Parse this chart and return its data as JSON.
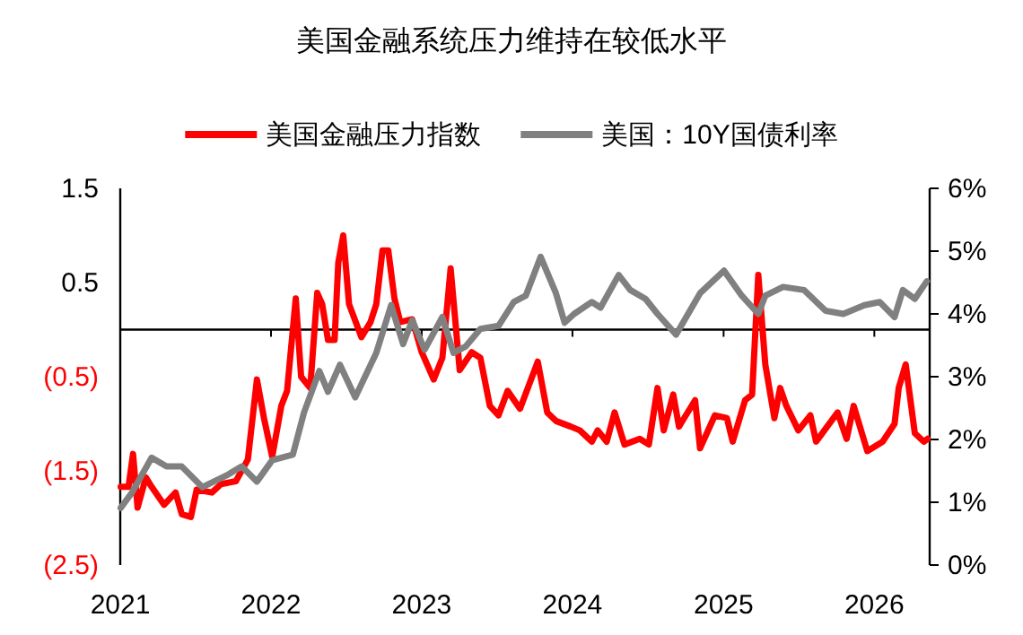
{
  "chart_data": {
    "type": "line",
    "title": "美国金融系统压力维持在较低水平",
    "series": [
      {
        "name": "美国金融压力指数",
        "color": "#ff0000",
        "x": [
          "2021-01-02",
          "2021-01-21",
          "2021-02-01",
          "2021-02-12",
          "2021-03-04",
          "2021-03-18",
          "2021-04-17",
          "2021-05-15",
          "2021-05-30",
          "2021-06-21",
          "2021-07-05",
          "2021-08-11",
          "2021-09-02",
          "2021-10-08",
          "2021-11-06",
          "2021-11-28",
          "2021-12-15",
          "2022-01-04",
          "2022-01-26",
          "2022-02-09",
          "2022-03-02",
          "2022-03-15",
          "2022-04-06",
          "2022-04-23",
          "2022-05-05",
          "2022-05-19",
          "2022-06-04",
          "2022-06-13",
          "2022-06-25",
          "2022-07-09",
          "2022-08-08",
          "2022-08-30",
          "2022-09-13",
          "2022-09-28",
          "2022-10-12",
          "2022-10-27",
          "2022-11-10",
          "2022-12-09",
          "2023-01-01",
          "2023-01-30",
          "2023-02-20",
          "2023-03-12",
          "2023-04-03",
          "2023-05-02",
          "2023-05-23",
          "2023-06-15",
          "2023-07-06",
          "2023-07-28",
          "2023-08-27",
          "2023-10-09",
          "2023-11-01",
          "2023-11-22",
          "2023-12-28",
          "2024-01-19",
          "2024-02-17",
          "2024-03-02",
          "2024-03-24",
          "2024-04-12",
          "2024-05-06",
          "2024-06-12",
          "2024-07-04",
          "2024-07-25",
          "2024-08-09",
          "2024-09-01",
          "2024-09-15",
          "2024-10-24",
          "2024-11-05",
          "2024-12-11",
          "2025-01-09",
          "2025-01-23",
          "2025-02-22",
          "2025-03-11",
          "2025-03-26",
          "2025-04-12",
          "2025-05-04",
          "2025-05-18",
          "2025-06-02",
          "2025-07-01",
          "2025-07-30",
          "2025-08-13",
          "2025-10-04",
          "2025-10-26",
          "2025-11-12",
          "2025-12-15",
          "2026-01-21",
          "2026-02-19",
          "2026-03-01",
          "2026-03-18",
          "2026-04-09",
          "2026-05-01",
          "2026-05-10"
        ],
        "values": [
          -1.67,
          -1.67,
          -1.32,
          -1.89,
          -1.57,
          -1.67,
          -1.86,
          -1.73,
          -1.96,
          -1.99,
          -1.7,
          -1.73,
          -1.64,
          -1.61,
          -1.38,
          -0.53,
          -0.94,
          -1.35,
          -0.81,
          -0.65,
          0.33,
          -0.5,
          -0.62,
          0.39,
          0.27,
          -0.11,
          -0.11,
          0.71,
          1.0,
          0.27,
          -0.08,
          0.08,
          0.27,
          0.84,
          0.84,
          0.33,
          0.08,
          0.11,
          -0.24,
          -0.53,
          -0.3,
          0.65,
          -0.43,
          -0.24,
          -0.3,
          -0.81,
          -0.91,
          -0.65,
          -0.84,
          -0.34,
          -0.88,
          -0.97,
          -1.03,
          -1.07,
          -1.19,
          -1.07,
          -1.19,
          -0.88,
          -1.22,
          -1.16,
          -1.22,
          -0.62,
          -1.07,
          -0.69,
          -1.03,
          -0.75,
          -1.26,
          -0.91,
          -0.94,
          -1.19,
          -0.75,
          -0.69,
          0.58,
          -0.37,
          -0.94,
          -0.62,
          -0.81,
          -1.07,
          -0.91,
          -1.19,
          -0.88,
          -1.16,
          -0.81,
          -1.29,
          -1.19,
          -1.0,
          -0.62,
          -0.37,
          -1.1,
          -1.19,
          -1.16
        ]
      },
      {
        "name": "美国：10Y国债利率",
        "color": "#808080",
        "axis": "y2",
        "x": [
          "2021-01-02",
          "2021-01-28",
          "2021-03-18",
          "2021-04-23",
          "2021-05-30",
          "2021-07-19",
          "2021-09-16",
          "2021-10-22",
          "2021-11-28",
          "2022-01-04",
          "2022-02-23",
          "2022-03-22",
          "2022-04-28",
          "2022-05-19",
          "2022-06-17",
          "2022-07-24",
          "2022-09-13",
          "2022-10-19",
          "2022-11-17",
          "2022-12-09",
          "2023-01-08",
          "2023-02-20",
          "2023-03-19",
          "2023-04-17",
          "2023-05-23",
          "2023-07-06",
          "2023-08-12",
          "2023-09-10",
          "2023-10-16",
          "2023-11-22",
          "2023-12-13",
          "2024-01-05",
          "2024-02-17",
          "2024-03-09",
          "2024-04-22",
          "2024-05-20",
          "2024-06-26",
          "2024-07-25",
          "2024-09-08",
          "2024-11-05",
          "2025-01-02",
          "2025-02-14",
          "2025-03-26",
          "2025-04-12",
          "2025-05-25",
          "2025-07-15",
          "2025-09-05",
          "2025-10-18",
          "2025-12-08",
          "2026-01-14",
          "2026-02-19",
          "2026-03-11",
          "2026-04-09",
          "2026-05-08"
        ],
        "values": [
          0.91,
          1.14,
          1.71,
          1.57,
          1.57,
          1.24,
          1.43,
          1.57,
          1.33,
          1.67,
          1.76,
          2.43,
          3.09,
          2.76,
          3.19,
          2.67,
          3.38,
          4.14,
          3.52,
          3.9,
          3.43,
          3.95,
          3.38,
          3.48,
          3.76,
          3.81,
          4.19,
          4.29,
          4.91,
          4.33,
          3.86,
          4.0,
          4.19,
          4.1,
          4.62,
          4.38,
          4.24,
          4.0,
          3.67,
          4.33,
          4.69,
          4.29,
          4.0,
          4.29,
          4.43,
          4.38,
          4.05,
          4.0,
          4.14,
          4.19,
          3.95,
          4.38,
          4.24,
          4.52
        ]
      }
    ],
    "xlim": [
      "2021-01-01",
      "2026-05-15"
    ],
    "xticks": [
      "2021",
      "2022",
      "2023",
      "2024",
      "2025",
      "2026"
    ],
    "ylim": [
      -2.5,
      1.5
    ],
    "yticks": [
      1.5,
      0.5,
      {
        "value": -0.5,
        "label": "(0.5)"
      },
      {
        "value": -1.5,
        "label": "(1.5)"
      },
      {
        "value": -2.5,
        "label": "(2.5)"
      }
    ],
    "y2lim": [
      0,
      6
    ],
    "y2ticks": [
      {
        "value": 0,
        "label": "0%"
      },
      {
        "value": 1,
        "label": "1%"
      },
      {
        "value": 2,
        "label": "2%"
      },
      {
        "value": 3,
        "label": "3%"
      },
      {
        "value": 4,
        "label": "4%"
      },
      {
        "value": 5,
        "label": "5%"
      },
      {
        "value": 6,
        "label": "6%"
      }
    ],
    "legend": "top",
    "grid": false
  }
}
